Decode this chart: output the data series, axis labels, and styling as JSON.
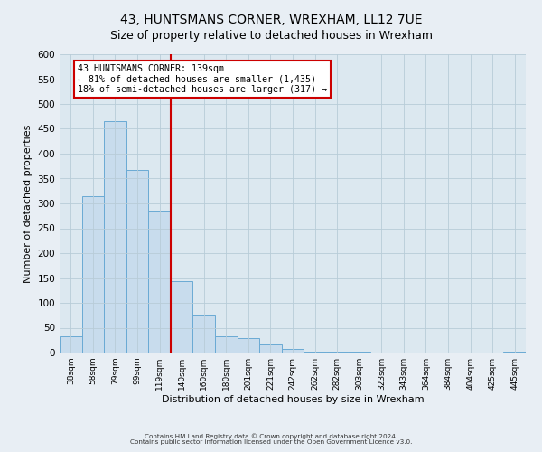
{
  "title": "43, HUNTSMANS CORNER, WREXHAM, LL12 7UE",
  "subtitle": "Size of property relative to detached houses in Wrexham",
  "xlabel": "Distribution of detached houses by size in Wrexham",
  "ylabel": "Number of detached properties",
  "bar_labels": [
    "38sqm",
    "58sqm",
    "79sqm",
    "99sqm",
    "119sqm",
    "140sqm",
    "160sqm",
    "180sqm",
    "201sqm",
    "221sqm",
    "242sqm",
    "262sqm",
    "282sqm",
    "303sqm",
    "323sqm",
    "343sqm",
    "364sqm",
    "384sqm",
    "404sqm",
    "425sqm",
    "445sqm"
  ],
  "bar_values": [
    32,
    315,
    465,
    367,
    285,
    143,
    75,
    32,
    29,
    16,
    8,
    2,
    1,
    1,
    0,
    0,
    0,
    0,
    0,
    0,
    2
  ],
  "bar_color": "#c8dced",
  "bar_edge_color": "#6aaad4",
  "vline_x_idx": 5,
  "vline_color": "#cc0000",
  "annotation_title": "43 HUNTSMANS CORNER: 139sqm",
  "annotation_line1": "← 81% of detached houses are smaller (1,435)",
  "annotation_line2": "18% of semi-detached houses are larger (317) →",
  "annotation_box_edge": "#cc0000",
  "ylim": [
    0,
    600
  ],
  "yticks": [
    0,
    50,
    100,
    150,
    200,
    250,
    300,
    350,
    400,
    450,
    500,
    550,
    600
  ],
  "footer1": "Contains HM Land Registry data © Crown copyright and database right 2024.",
  "footer2": "Contains public sector information licensed under the Open Government Licence v3.0.",
  "background_color": "#e8eef4",
  "plot_bg_color": "#dce8f0",
  "title_fontsize": 10,
  "subtitle_fontsize": 9
}
